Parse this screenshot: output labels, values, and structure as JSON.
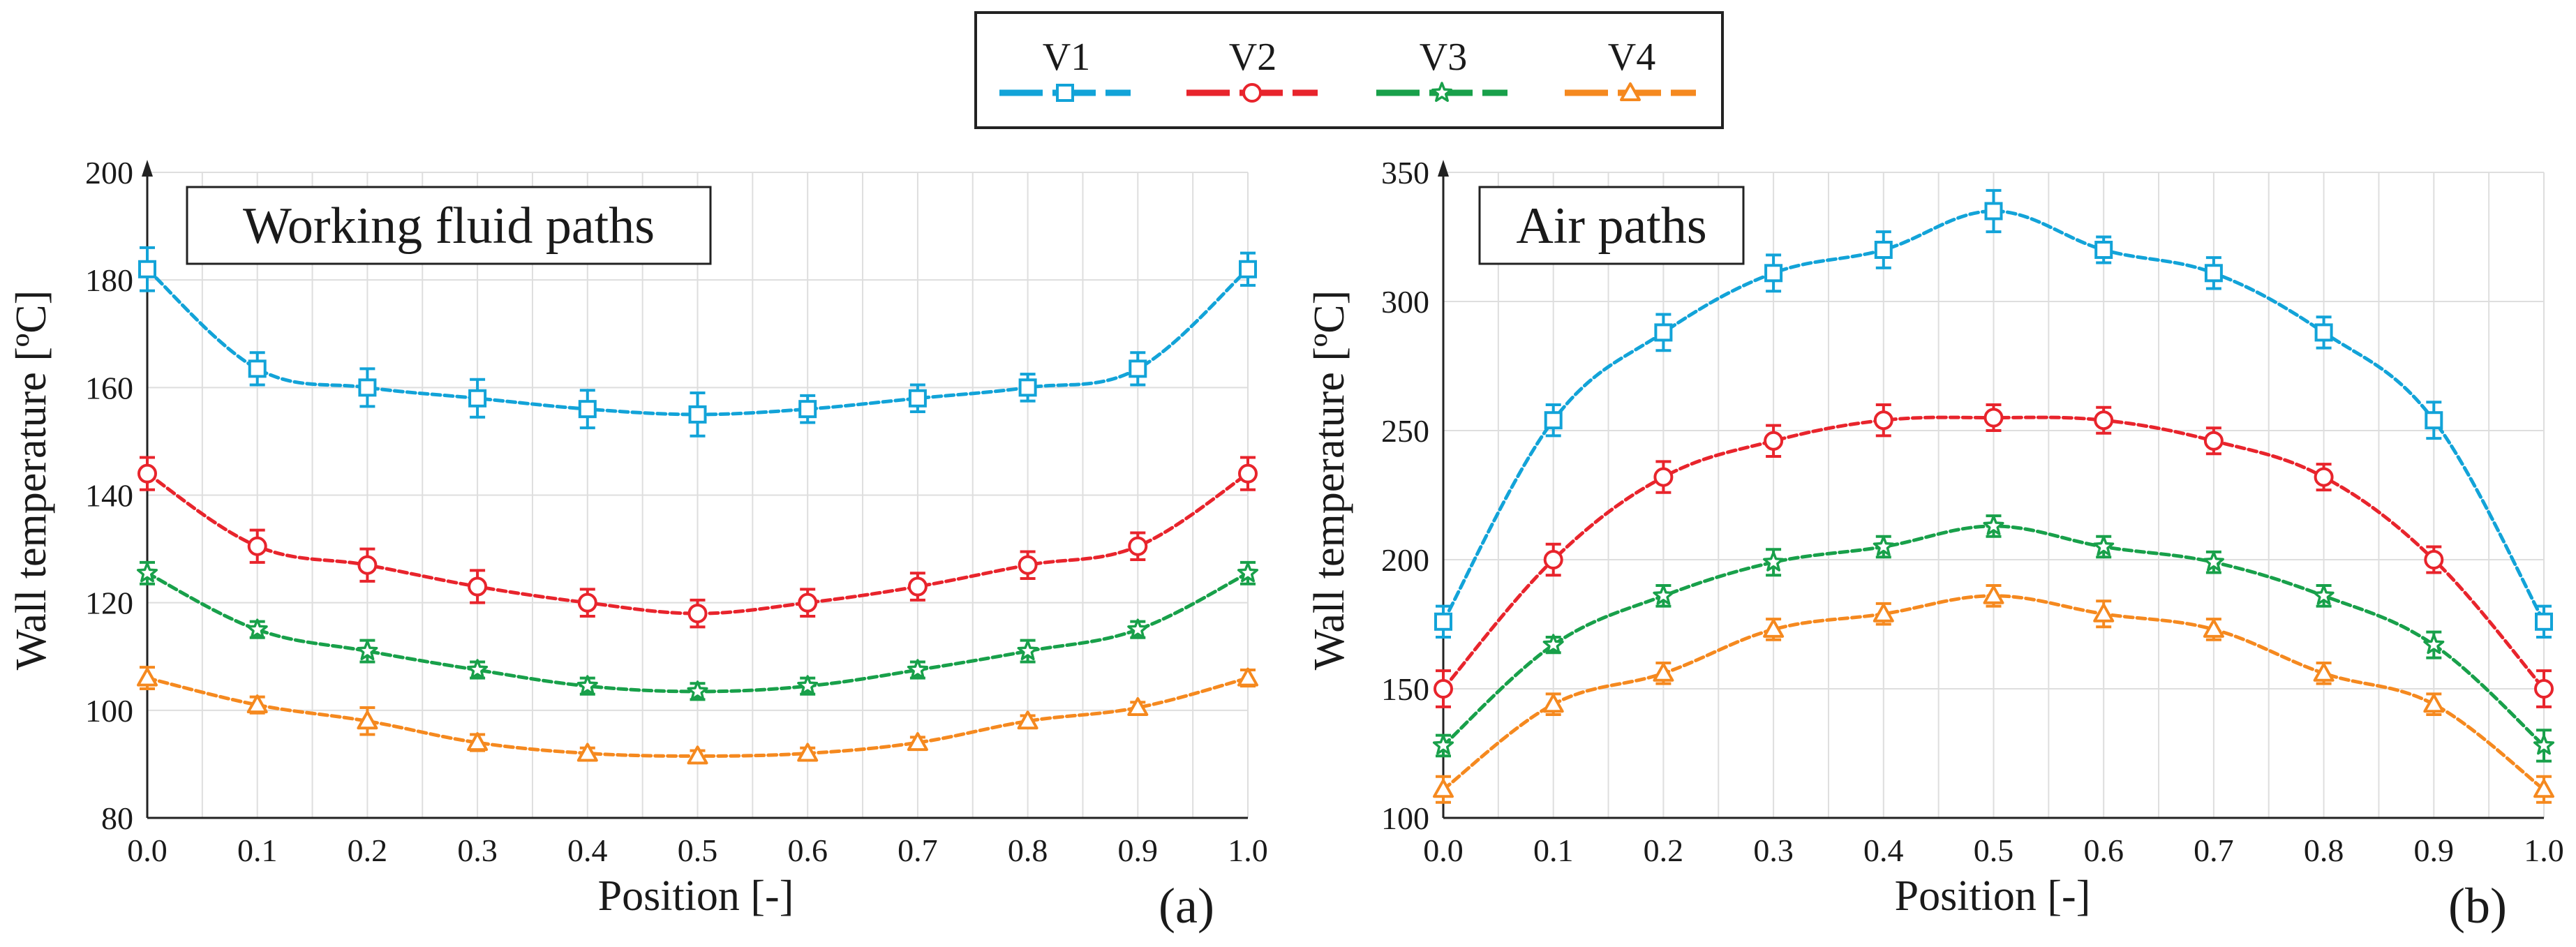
{
  "legend": {
    "items": [
      {
        "label": "V1",
        "color": "#12a3d8",
        "marker": "square"
      },
      {
        "label": "V2",
        "color": "#e8242c",
        "marker": "circle"
      },
      {
        "label": "V3",
        "color": "#18a04a",
        "marker": "star"
      },
      {
        "label": "V4",
        "color": "#f5891f",
        "marker": "triangle"
      }
    ]
  },
  "chart_data": [
    {
      "type": "line",
      "panel_label": "(a)",
      "title": "Working fluid paths",
      "xlabel": "Position [-]",
      "ylabel": "Wall temperature [ºC]",
      "xlim": [
        0,
        1
      ],
      "ylim": [
        80,
        200
      ],
      "xticks": [
        "0.0",
        "0.1",
        "0.2",
        "0.3",
        "0.4",
        "0.5",
        "0.6",
        "0.7",
        "0.8",
        "0.9",
        "1.0"
      ],
      "yticks": [
        "80",
        "100",
        "120",
        "140",
        "160",
        "180",
        "200"
      ],
      "x": [
        0.0,
        0.1,
        0.2,
        0.3,
        0.4,
        0.5,
        0.6,
        0.7,
        0.8,
        0.9,
        1.0
      ],
      "series": [
        {
          "name": "V1",
          "values": [
            182,
            163.5,
            160,
            158,
            156,
            155,
            156,
            158,
            160,
            163.5,
            182
          ],
          "error": [
            4,
            3,
            3.5,
            3.5,
            3.5,
            4,
            2.5,
            2.5,
            2.5,
            3,
            3
          ]
        },
        {
          "name": "V2",
          "values": [
            144,
            130.5,
            127,
            123,
            120,
            118,
            120,
            123,
            127,
            130.5,
            144
          ],
          "error": [
            3,
            3,
            3,
            3,
            2.5,
            2.5,
            2.5,
            2.5,
            2.5,
            2.5,
            3
          ]
        },
        {
          "name": "V3",
          "values": [
            125.5,
            115,
            111,
            107.5,
            104.5,
            103.5,
            104.5,
            107.5,
            111,
            115,
            125.5
          ],
          "error": [
            2,
            1.5,
            2,
            1.5,
            1.5,
            1.5,
            1.5,
            1.5,
            2,
            1.5,
            2
          ]
        },
        {
          "name": "V4",
          "values": [
            106,
            101,
            98,
            94,
            92,
            91.5,
            92,
            94,
            98,
            100.5,
            106
          ],
          "error": [
            2,
            1.5,
            2.5,
            1.5,
            1,
            1,
            1,
            1,
            1,
            1,
            1.5
          ]
        }
      ]
    },
    {
      "type": "line",
      "panel_label": "(b)",
      "title": "Air paths",
      "xlabel": "Position [-]",
      "ylabel": "Wall temperature [ºC]",
      "xlim": [
        0,
        1
      ],
      "ylim": [
        100,
        350
      ],
      "xticks": [
        "0.0",
        "0.1",
        "0.2",
        "0.3",
        "0.4",
        "0.5",
        "0.6",
        "0.7",
        "0.8",
        "0.9",
        "1.0"
      ],
      "yticks": [
        "100",
        "150",
        "200",
        "250",
        "300",
        "350"
      ],
      "x": [
        0.0,
        0.1,
        0.2,
        0.3,
        0.4,
        0.5,
        0.6,
        0.7,
        0.8,
        0.9,
        1.0
      ],
      "series": [
        {
          "name": "V1",
          "values": [
            176,
            254,
            288,
            311,
            320,
            335,
            320,
            311,
            288,
            254,
            176
          ],
          "error": [
            6,
            6,
            7,
            7,
            7,
            8,
            5,
            6,
            6,
            7,
            6
          ]
        },
        {
          "name": "V2",
          "values": [
            150,
            200,
            232,
            246,
            254,
            255,
            254,
            246,
            232,
            200,
            150
          ],
          "error": [
            7,
            6,
            6,
            6,
            6,
            5,
            5,
            5,
            5,
            5,
            7
          ]
        },
        {
          "name": "V3",
          "values": [
            128,
            167,
            186,
            199,
            205,
            213,
            205,
            199,
            186,
            167,
            128
          ],
          "error": [
            4,
            3,
            4,
            5,
            4,
            4,
            4,
            4,
            4,
            5,
            6
          ]
        },
        {
          "name": "V4",
          "values": [
            111,
            144,
            156,
            173,
            179,
            186,
            179,
            173,
            156,
            144,
            111
          ],
          "error": [
            5,
            4,
            4,
            4,
            4,
            4,
            5,
            4,
            4,
            4,
            5
          ]
        }
      ]
    }
  ]
}
